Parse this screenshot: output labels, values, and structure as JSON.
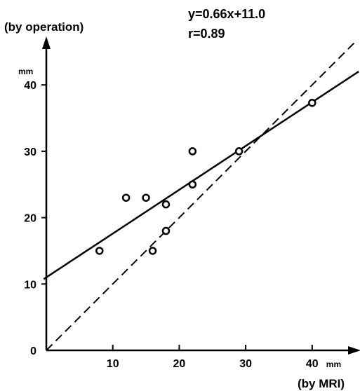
{
  "chart_data": {
    "type": "scatter",
    "annotations": {
      "equation": "y=0.66x+11.0",
      "correlation": "r=0.89"
    },
    "xlabel": "(by MRI)",
    "ylabel": "(by operation)",
    "x_unit": "mm",
    "y_unit": "mm",
    "xlim": [
      0,
      48
    ],
    "ylim": [
      0,
      48
    ],
    "x_ticks": [
      {
        "value": 10,
        "label": "10"
      },
      {
        "value": 20,
        "label": "20"
      },
      {
        "value": 30,
        "label": "30"
      },
      {
        "value": 40,
        "label": "40"
      }
    ],
    "y_ticks": [
      {
        "value": 0,
        "label": "0"
      },
      {
        "value": 10,
        "label": "10"
      },
      {
        "value": 20,
        "label": "20"
      },
      {
        "value": 30,
        "label": "30"
      },
      {
        "value": 40,
        "label": "40"
      }
    ],
    "points": [
      {
        "x": 8,
        "y": 15
      },
      {
        "x": 12,
        "y": 23
      },
      {
        "x": 15,
        "y": 23
      },
      {
        "x": 16,
        "y": 15
      },
      {
        "x": 18,
        "y": 18
      },
      {
        "x": 18,
        "y": 22
      },
      {
        "x": 22,
        "y": 25
      },
      {
        "x": 22,
        "y": 30
      },
      {
        "x": 29,
        "y": 30
      },
      {
        "x": 40,
        "y": 37.3
      }
    ],
    "regression_line": {
      "slope": 0.66,
      "intercept": 11.0,
      "style": "solid"
    },
    "identity_line": {
      "slope": 1,
      "intercept": 0,
      "style": "dashed"
    },
    "grid": false,
    "colors": {
      "ink": "#000000",
      "background": "#ffffff"
    }
  }
}
